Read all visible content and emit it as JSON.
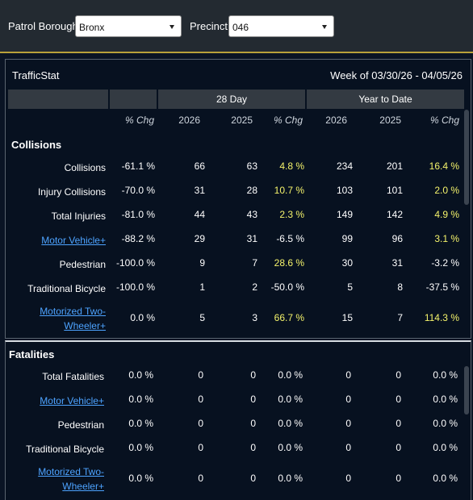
{
  "filters": {
    "borough_label": "Patrol Borough:",
    "borough_value": "Bronx",
    "precinct_label": "Precinct:",
    "precinct_value": "046"
  },
  "trafficstat": {
    "title": "TrafficStat",
    "week": "Week of 03/30/26 - 04/05/26",
    "groups": {
      "day28": "28 Day",
      "ytd": "Year to Date"
    },
    "headers": [
      "% Chg",
      "2026",
      "2025",
      "% Chg",
      "2026",
      "2025",
      "% Chg"
    ]
  },
  "collisions": {
    "section": "Collisions",
    "rows": [
      {
        "label": "Collisions",
        "link": false,
        "week_chg": "-61.1 %",
        "d28_2026": "66",
        "d28_2025": "63",
        "d28_chg": "4.8 %",
        "ytd_2026": "234",
        "ytd_2025": "201",
        "ytd_chg": "16.4 %"
      },
      {
        "label": "Injury Collisions",
        "link": false,
        "week_chg": "-70.0 %",
        "d28_2026": "31",
        "d28_2025": "28",
        "d28_chg": "10.7 %",
        "ytd_2026": "103",
        "ytd_2025": "101",
        "ytd_chg": "2.0 %"
      },
      {
        "label": "Total Injuries",
        "link": false,
        "week_chg": "-81.0 %",
        "d28_2026": "44",
        "d28_2025": "43",
        "d28_chg": "2.3 %",
        "ytd_2026": "149",
        "ytd_2025": "142",
        "ytd_chg": "4.9 %"
      },
      {
        "label": "Motor Vehicle+",
        "link": true,
        "week_chg": "-88.2 %",
        "d28_2026": "29",
        "d28_2025": "31",
        "d28_chg": "-6.5 %",
        "ytd_2026": "99",
        "ytd_2025": "96",
        "ytd_chg": "3.1 %"
      },
      {
        "label": "Pedestrian",
        "link": false,
        "week_chg": "-100.0 %",
        "d28_2026": "9",
        "d28_2025": "7",
        "d28_chg": "28.6 %",
        "ytd_2026": "30",
        "ytd_2025": "31",
        "ytd_chg": "-3.2 %"
      },
      {
        "label": "Traditional Bicycle",
        "link": false,
        "week_chg": "-100.0 %",
        "d28_2026": "1",
        "d28_2025": "2",
        "d28_chg": "-50.0 %",
        "ytd_2026": "5",
        "ytd_2025": "8",
        "ytd_chg": "-37.5 %"
      },
      {
        "label": "Motorized Two-Wheeler+",
        "label_line1": "Motorized Two-",
        "label_line2": "Wheeler+",
        "link": true,
        "week_chg": "0.0 %",
        "d28_2026": "5",
        "d28_2025": "3",
        "d28_chg": "66.7 %",
        "ytd_2026": "15",
        "ytd_2025": "7",
        "ytd_chg": "114.3 %"
      }
    ]
  },
  "fatalities": {
    "section": "Fatalities",
    "rows": [
      {
        "label": "Total Fatalities",
        "link": false,
        "week_chg": "0.0 %",
        "d28_2026": "0",
        "d28_2025": "0",
        "d28_chg": "0.0 %",
        "ytd_2026": "0",
        "ytd_2025": "0",
        "ytd_chg": "0.0 %"
      },
      {
        "label": "Motor Vehicle+",
        "link": true,
        "week_chg": "0.0 %",
        "d28_2026": "0",
        "d28_2025": "0",
        "d28_chg": "0.0 %",
        "ytd_2026": "0",
        "ytd_2025": "0",
        "ytd_chg": "0.0 %"
      },
      {
        "label": "Pedestrian",
        "link": false,
        "week_chg": "0.0 %",
        "d28_2026": "0",
        "d28_2025": "0",
        "d28_chg": "0.0 %",
        "ytd_2026": "0",
        "ytd_2025": "0",
        "ytd_chg": "0.0 %"
      },
      {
        "label": "Traditional Bicycle",
        "link": false,
        "week_chg": "0.0 %",
        "d28_2026": "0",
        "d28_2025": "0",
        "d28_chg": "0.0 %",
        "ytd_2026": "0",
        "ytd_2025": "0",
        "ytd_chg": "0.0 %"
      },
      {
        "label": "Motorized Two-Wheeler+",
        "label_line1": "Motorized Two-",
        "label_line2": "Wheeler+",
        "link": true,
        "week_chg": "0.0 %",
        "d28_2026": "0",
        "d28_2025": "0",
        "d28_chg": "0.0 %",
        "ytd_2026": "0",
        "ytd_2025": "0",
        "ytd_chg": "0.0 %"
      }
    ]
  },
  "colors": {
    "positive_change": "#f4f36b",
    "link": "#4da3ff",
    "accent_line": "#b9a13a"
  }
}
